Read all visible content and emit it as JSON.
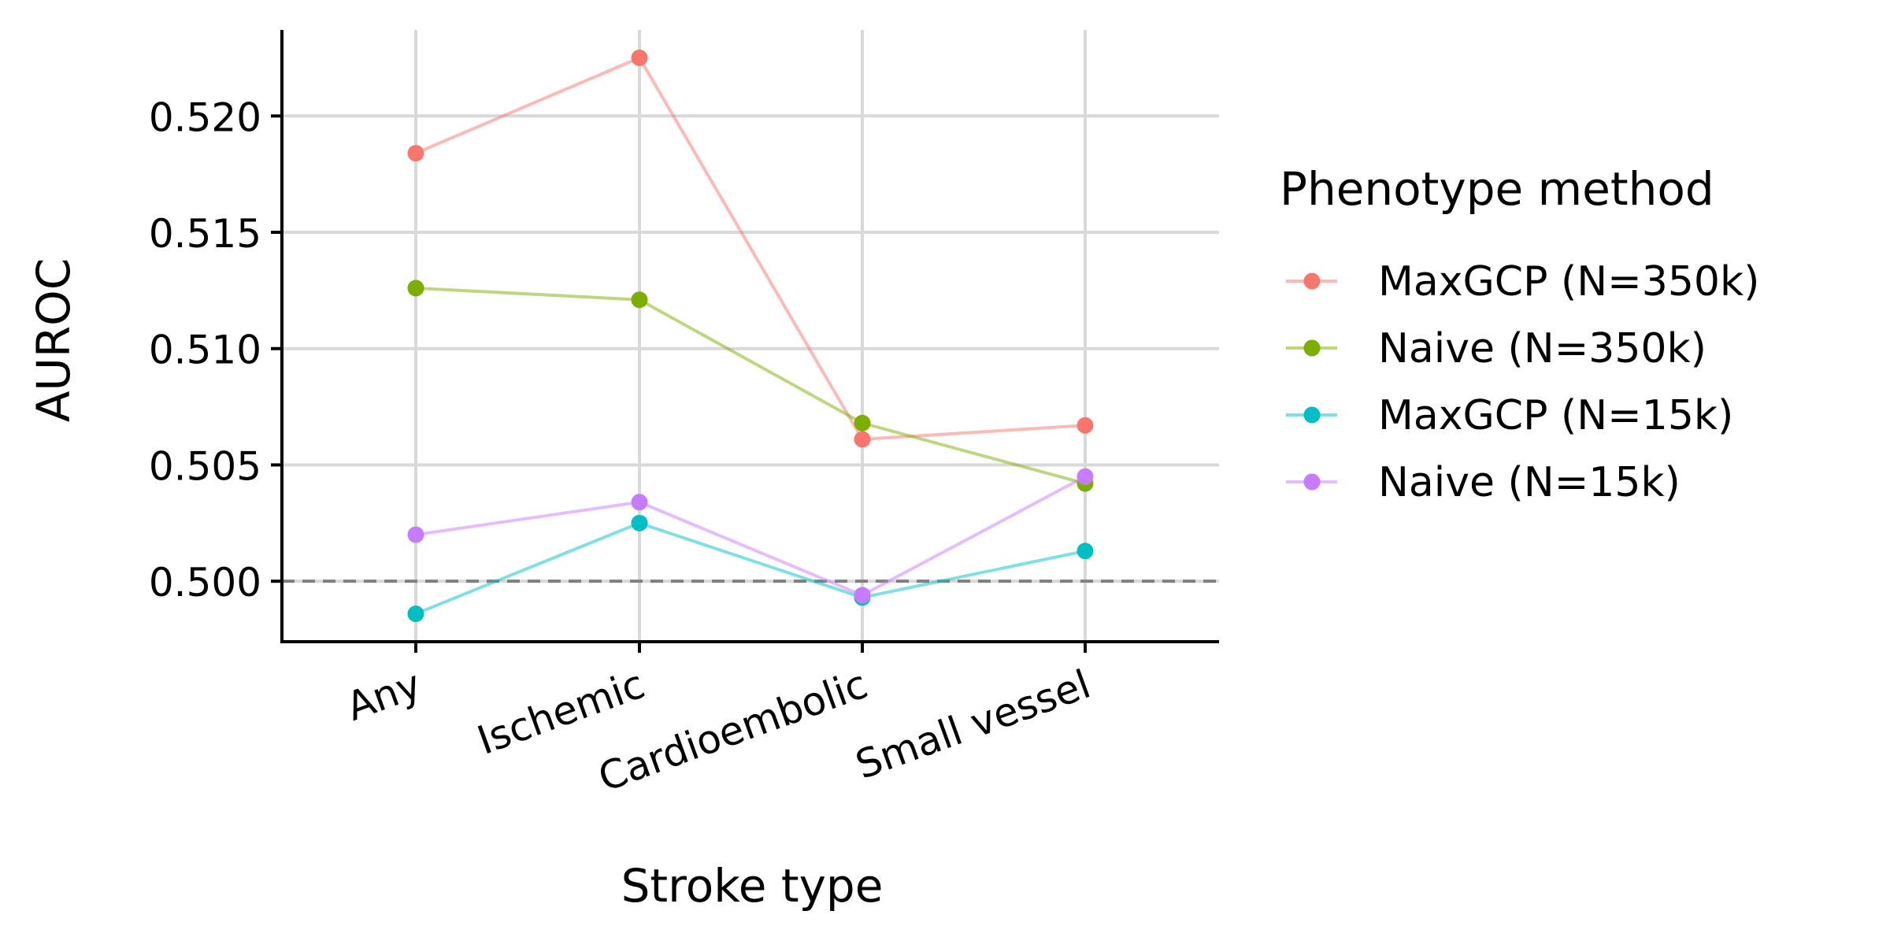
{
  "chart_data": {
    "type": "line",
    "title": "",
    "xlabel": "Stroke type",
    "ylabel": "AUROC",
    "categories": [
      "Any",
      "Ischemic",
      "Cardioembolic",
      "Small vessel"
    ],
    "ylim": [
      0.4974,
      0.5237
    ],
    "yticks": [
      0.5,
      0.505,
      0.51,
      0.515,
      0.52
    ],
    "ytick_labels": [
      "0.500",
      "0.505",
      "0.510",
      "0.515",
      "0.520"
    ],
    "reference_line": {
      "y": 0.5,
      "style": "dashed",
      "color": "#808080"
    },
    "grid": true,
    "legend": {
      "title": "Phenotype method",
      "position": "right"
    },
    "series": [
      {
        "name": "MaxGCP (N=350k)",
        "color": "#F8766D",
        "values": [
          0.5184,
          0.5225,
          0.5061,
          0.5067
        ]
      },
      {
        "name": "Naive (N=350k)",
        "color": "#7CAE00",
        "values": [
          0.5126,
          0.5121,
          0.5068,
          0.5042
        ]
      },
      {
        "name": "MaxGCP (N=15k)",
        "color": "#00BFC4",
        "values": [
          0.4986,
          0.5025,
          0.4993,
          0.5013
        ]
      },
      {
        "name": "Naive (N=15k)",
        "color": "#C77CFF",
        "values": [
          0.502,
          0.5034,
          0.4994,
          0.5045
        ]
      }
    ]
  }
}
